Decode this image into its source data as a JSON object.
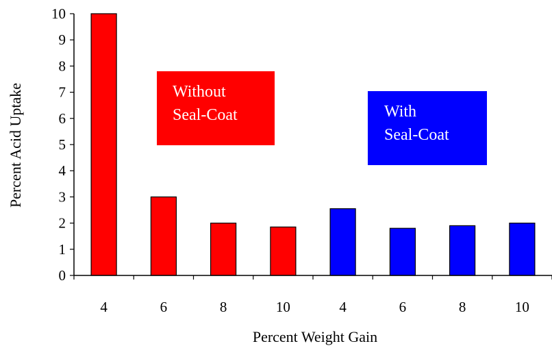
{
  "chart_data": {
    "type": "bar",
    "title": "",
    "xlabel": "Percent Weight Gain",
    "ylabel": "Percent Acid Uptake",
    "ylim": [
      0,
      10
    ],
    "yticks": [
      0,
      1,
      2,
      3,
      4,
      5,
      6,
      7,
      8,
      9,
      10
    ],
    "grid": false,
    "groups": [
      {
        "label_lines": [
          "Without",
          "Seal-Coat"
        ],
        "color": "#ff0000",
        "categories": [
          "4",
          "6",
          "8",
          "10"
        ],
        "values": [
          10.3,
          3.0,
          2.0,
          1.85
        ]
      },
      {
        "label_lines": [
          "With",
          "Seal-Coat"
        ],
        "color": "#0000ff",
        "categories": [
          "4",
          "6",
          "8",
          "10"
        ],
        "values": [
          2.55,
          1.8,
          1.9,
          2.0
        ]
      }
    ]
  }
}
